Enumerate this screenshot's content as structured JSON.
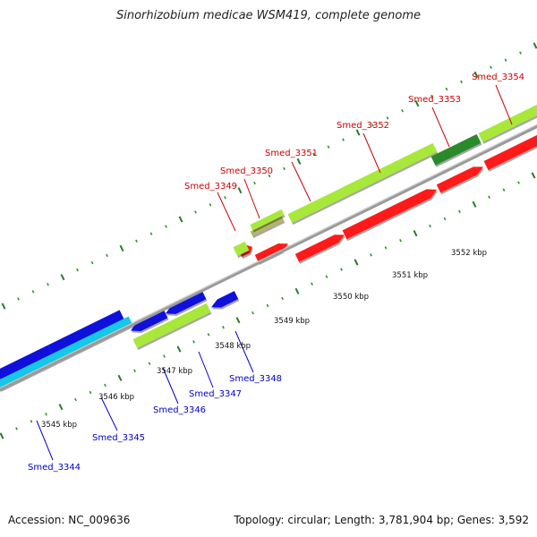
{
  "title": "Sinorhizobium medicae WSM419, complete genome",
  "footer": {
    "accession": "Accession: NC_009636",
    "stats": "Topology: circular; Length: 3,781,904 bp; Genes: 3,592"
  },
  "colors": {
    "backbone": "#8c8c8c",
    "tick_major": "#2a7a2a",
    "tick_minor": "#2f8f2f",
    "kbp_label": "#111111",
    "forward_label": "#cc0000",
    "reverse_label": "#0000cc",
    "red_gene": "#ff1a1a",
    "blue_gene": "#1010dd",
    "cyan_gene": "#14c8e6",
    "lime_gene": "#a8e83a",
    "darkgreen_gene": "#2a8a2a",
    "khaki_gene": "#b5b56a"
  },
  "scale_labels": [
    "3545 kbp",
    "3546 kbp",
    "3547 kbp",
    "3548 kbp",
    "3549 kbp",
    "3550 kbp",
    "3551 kbp",
    "3552 kbp"
  ],
  "gene_labels": {
    "forward": [
      "Smed_3349",
      "Smed_3350",
      "Smed_3351",
      "Smed_3352",
      "Smed_3353",
      "Smed_3354"
    ],
    "reverse": [
      "Smed_3344",
      "Smed_3345",
      "Smed_3346",
      "Smed_3347",
      "Smed_3348"
    ]
  }
}
